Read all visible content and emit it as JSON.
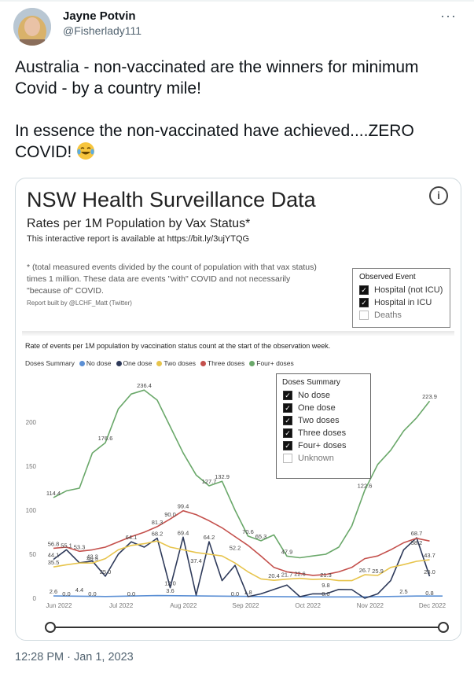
{
  "author": {
    "name": "Jayne Potvin",
    "handle": "@Fisherlady111"
  },
  "menu_label": "···",
  "tweet": {
    "line1": "Australia - non-vaccinated are the winners for minimum Covid - by a country mile!",
    "line2": "In essence the non-vaccinated have achieved....ZERO COVID!",
    "emoji": "face-with-tears-of-joy"
  },
  "report": {
    "title": "NSW Health Surveillance Data",
    "subtitle": "Rates per 1M Population by Vax Status*",
    "link_text": "This interactive report is available at",
    "link_url": "https://bit.ly/3ujYTQG",
    "info_label": "i",
    "note": "* (total measured events divided by the count of population with that vax status) times 1 million.  These data are events \"with\" COVID and not necessarily \"because of\" COVID.",
    "credit": "Report built by @LCHF_Matt (Twitter)",
    "observed_event": {
      "title": "Observed Event",
      "items": [
        {
          "label": "Hospital (not ICU)",
          "checked": true
        },
        {
          "label": "Hospital in ICU",
          "checked": true
        },
        {
          "label": "Deaths",
          "checked": false
        }
      ]
    }
  },
  "chart_heading": "Rate of events per 1M population by vaccination status count at the start of the observation week.",
  "legend": {
    "title": "Doses Summary",
    "items": [
      {
        "label": "No dose",
        "color": "#5b8fd4"
      },
      {
        "label": "One dose",
        "color": "#2e3a5a"
      },
      {
        "label": "Two doses",
        "color": "#e7c44c"
      },
      {
        "label": "Three doses",
        "color": "#c4504c"
      },
      {
        "label": "Four+ doses",
        "color": "#6aa86a"
      }
    ]
  },
  "doses_filter": {
    "title": "Doses Summary",
    "items": [
      {
        "label": "No dose",
        "checked": true
      },
      {
        "label": "One dose",
        "checked": true
      },
      {
        "label": "Two doses",
        "checked": true
      },
      {
        "label": "Three doses",
        "checked": true
      },
      {
        "label": "Four+ doses",
        "checked": true
      },
      {
        "label": "Unknown",
        "checked": false
      }
    ]
  },
  "chart_data": {
    "type": "line",
    "title": "Rate of events per 1M population by vaccination status count at the start of the observation week.",
    "x_ticks": [
      "Jun 2022",
      "Jul 2022",
      "Aug 2022",
      "Sep 2022",
      "Oct 2022",
      "Nov 2022",
      "Dec 2022"
    ],
    "y_ticks": [
      0,
      50,
      100,
      150,
      200
    ],
    "ylim": [
      0,
      250
    ],
    "xlim": [
      0,
      30
    ],
    "grid": false,
    "legend_position": "top-left",
    "series": [
      {
        "name": "No dose",
        "color": "#5b8fd4",
        "x": [
          0,
          4,
          8,
          12,
          16,
          20,
          24,
          28,
          30
        ],
        "y": [
          2.6,
          2.0,
          3.0,
          2.5,
          2.0,
          1.5,
          1.5,
          2.5,
          2.5
        ]
      },
      {
        "name": "One dose",
        "color": "#2e3a5a",
        "x": [
          0,
          1,
          2,
          3,
          4,
          5,
          6,
          7,
          8,
          9,
          10,
          11,
          12,
          13,
          14,
          15,
          16,
          17,
          18,
          19,
          20,
          21,
          22,
          23,
          24,
          25,
          26,
          27,
          28,
          29
        ],
        "y": [
          44.1,
          55.1,
          40.3,
          42.2,
          25.0,
          50.0,
          64.1,
          58.0,
          68.2,
          12.0,
          69.4,
          3.6,
          64.2,
          20.0,
          37.4,
          1.8,
          5.0,
          10.0,
          15.0,
          1.8,
          5.0,
          5.0,
          10.0,
          9.8,
          0.0,
          5.0,
          20.0,
          55.0,
          68.7,
          25.0
        ]
      },
      {
        "name": "Two doses",
        "color": "#e7c44c",
        "x": [
          0,
          1,
          2,
          3,
          4,
          5,
          6,
          7,
          8,
          9,
          10,
          11,
          12,
          13,
          14,
          15,
          16,
          17,
          18,
          19,
          20,
          21,
          22,
          23,
          24,
          25,
          26,
          27,
          28,
          29
        ],
        "y": [
          35.5,
          38.0,
          40.0,
          40.0,
          45.0,
          55.0,
          60.0,
          62.0,
          65.0,
          58.0,
          55.0,
          52.0,
          50.0,
          48.0,
          40.0,
          30.0,
          22.0,
          20.4,
          21.7,
          22.6,
          21.3,
          22.0,
          20.0,
          20.0,
          26.7,
          25.9,
          35.0,
          38.2,
          42.0,
          43.7
        ]
      },
      {
        "name": "Three doses",
        "color": "#c4504c",
        "x": [
          0,
          1,
          2,
          3,
          4,
          5,
          6,
          7,
          8,
          9,
          10,
          11,
          12,
          13,
          14,
          15,
          16,
          17,
          18,
          19,
          20,
          21,
          22,
          23,
          24,
          25,
          26,
          27,
          28,
          29
        ],
        "y": [
          56.8,
          58.0,
          53.3,
          55.0,
          58.0,
          64.1,
          70.0,
          75.0,
          81.3,
          90.0,
          99.4,
          95.0,
          88.0,
          80.0,
          70.0,
          60.0,
          47.9,
          35.0,
          30.0,
          28.0,
          26.0,
          27.0,
          30.0,
          35.0,
          45.0,
          48.0,
          55.0,
          63.0,
          68.0,
          65.0
        ]
      },
      {
        "name": "Four+ doses",
        "color": "#6aa86a",
        "x": [
          0,
          1,
          2,
          3,
          4,
          5,
          6,
          7,
          8,
          9,
          10,
          11,
          12,
          13,
          14,
          15,
          16,
          17,
          18,
          19,
          20,
          21,
          22,
          23,
          24,
          25,
          26,
          27,
          28,
          29
        ],
        "y": [
          114.4,
          122.0,
          125.0,
          165.0,
          176.6,
          215.0,
          232.0,
          236.4,
          225.0,
          195.0,
          165.0,
          140.0,
          127.7,
          132.9,
          100.0,
          70.6,
          65.3,
          72.0,
          47.9,
          46.0,
          48.0,
          50.0,
          58.0,
          82.0,
          122.6,
          152.0,
          168.0,
          190.0,
          205.0,
          223.9
        ]
      }
    ],
    "data_labels": [
      {
        "text": "236.4",
        "x": 7,
        "y": 236.4
      },
      {
        "text": "176.6",
        "x": 4,
        "y": 176.6
      },
      {
        "text": "132.9",
        "x": 13,
        "y": 132.9
      },
      {
        "text": "127.7",
        "x": 12,
        "y": 127.7
      },
      {
        "text": "114.4",
        "x": 0,
        "y": 114.4
      },
      {
        "text": "99.4",
        "x": 10,
        "y": 99.4
      },
      {
        "text": "90.0",
        "x": 9,
        "y": 90.0
      },
      {
        "text": "81.3",
        "x": 8,
        "y": 81.3
      },
      {
        "text": "70.6",
        "x": 15,
        "y": 70.6
      },
      {
        "text": "69.4",
        "x": 10,
        "y": 69.4
      },
      {
        "text": "68.2",
        "x": 8,
        "y": 68.2
      },
      {
        "text": "65.3",
        "x": 16,
        "y": 65.3
      },
      {
        "text": "64.2",
        "x": 12,
        "y": 64.2
      },
      {
        "text": "64.1",
        "x": 6,
        "y": 64.1
      },
      {
        "text": "55.1",
        "x": 1,
        "y": 55.1
      },
      {
        "text": "52.2",
        "x": 14,
        "y": 52.2
      },
      {
        "text": "56.8",
        "x": 0,
        "y": 56.8
      },
      {
        "text": "53.3",
        "x": 2,
        "y": 53.3
      },
      {
        "text": "47.9",
        "x": 18,
        "y": 47.9
      },
      {
        "text": "44.1",
        "x": 0,
        "y": 44.1
      },
      {
        "text": "40.3",
        "x": 3,
        "y": 40.3
      },
      {
        "text": "42.2",
        "x": 3,
        "y": 42.2
      },
      {
        "text": "37.4",
        "x": 11,
        "y": 37.4
      },
      {
        "text": "35.5",
        "x": 0,
        "y": 35.5
      },
      {
        "text": "25.0",
        "x": 4,
        "y": 25.0
      },
      {
        "text": "21.7",
        "x": 18,
        "y": 21.7
      },
      {
        "text": "20.4",
        "x": 17,
        "y": 20.4
      },
      {
        "text": "22.6",
        "x": 19,
        "y": 22.6
      },
      {
        "text": "21.3",
        "x": 21,
        "y": 21.3
      },
      {
        "text": "26.7",
        "x": 24,
        "y": 26.7
      },
      {
        "text": "25.9",
        "x": 25,
        "y": 25.9
      },
      {
        "text": "122.6",
        "x": 24,
        "y": 122.6
      },
      {
        "text": "223.9",
        "x": 29,
        "y": 223.9
      },
      {
        "text": "68.7",
        "x": 28,
        "y": 68.7
      },
      {
        "text": "58.2",
        "x": 28,
        "y": 58.2
      },
      {
        "text": "43.7",
        "x": 29,
        "y": 43.7
      },
      {
        "text": "25.0",
        "x": 29,
        "y": 25.0
      },
      {
        "text": "0.8",
        "x": 29,
        "y": 0.8
      },
      {
        "text": "2.5",
        "x": 27,
        "y": 2.5
      },
      {
        "text": "9.8",
        "x": 21,
        "y": 9.8
      },
      {
        "text": "0.0",
        "x": 21,
        "y": 0.0
      },
      {
        "text": "1.8",
        "x": 15,
        "y": 1.8
      },
      {
        "text": "0.0",
        "x": 14,
        "y": 0.0
      },
      {
        "text": "12.0",
        "x": 9,
        "y": 12.0
      },
      {
        "text": "3.6",
        "x": 9,
        "y": 3.6
      },
      {
        "text": "0.0",
        "x": 6,
        "y": 0.0
      },
      {
        "text": "4.4",
        "x": 2,
        "y": 4.4
      },
      {
        "text": "2.6",
        "x": 0,
        "y": 2.6
      },
      {
        "text": "0.0",
        "x": 1,
        "y": 0.0
      },
      {
        "text": "0.0",
        "x": 3,
        "y": 0.0
      }
    ]
  },
  "timestamp": "12:28 PM · Jan 1, 2023"
}
